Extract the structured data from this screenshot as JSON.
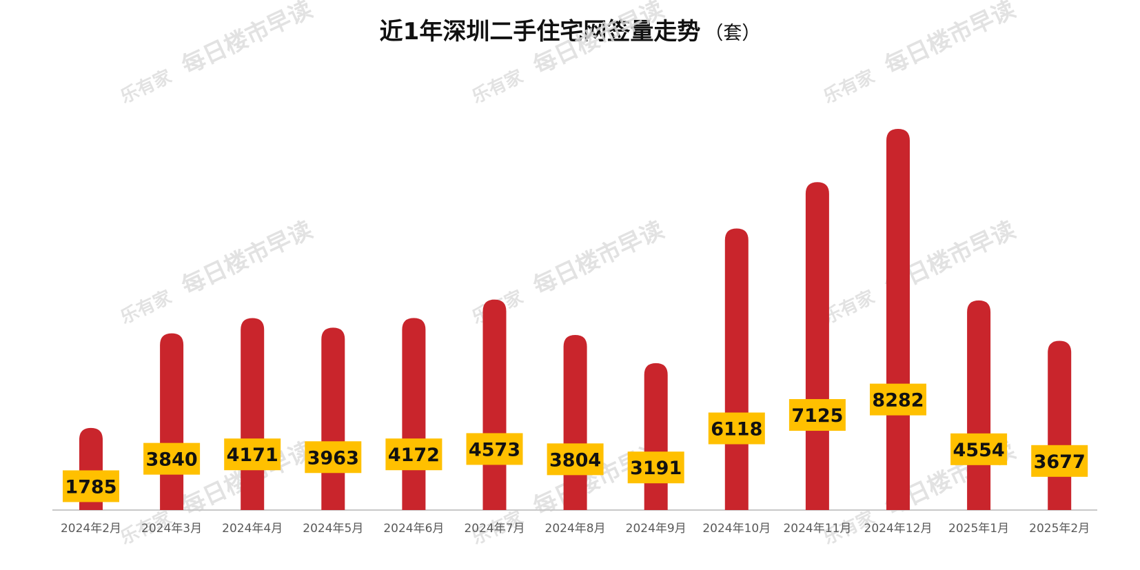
{
  "title": "近1年深圳二手住宅网签量走势",
  "unit": "（套）",
  "watermark": {
    "brand": "乐有家",
    "text": "每日楼市早读"
  },
  "colors": {
    "bar": "#c9252c",
    "label_bg": "#ffc000",
    "label_text": "#111111",
    "axis": "#c8c8c8",
    "tick_text": "#595959",
    "watermark": "#dedede"
  },
  "chart_data": {
    "type": "bar",
    "title": "近1年深圳二手住宅网签量走势",
    "unit": "（套）",
    "categories": [
      "2024年2月",
      "2024年3月",
      "2024年4月",
      "2024年5月",
      "2024年6月",
      "2024年7月",
      "2024年8月",
      "2024年9月",
      "2024年10月",
      "2024年11月",
      "2024年12月",
      "2025年1月",
      "2025年2月"
    ],
    "values": [
      1785,
      3840,
      4171,
      3963,
      4172,
      4573,
      3804,
      3191,
      6118,
      7125,
      8282,
      4554,
      3677
    ],
    "ylim": [
      0,
      8282
    ],
    "grid": false,
    "legend": "none"
  }
}
